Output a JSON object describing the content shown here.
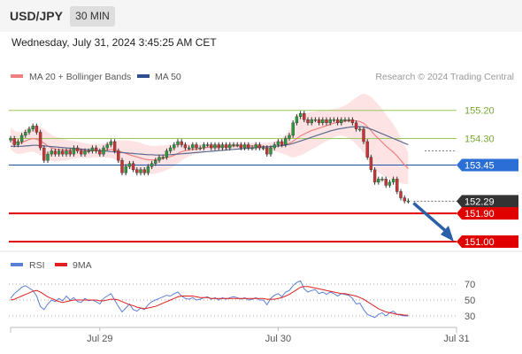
{
  "header": {
    "symbol": "USD/JPY",
    "timeframe": "30 MIN"
  },
  "datetime": "Wednesday, July 31, 2024 3:45:25 AM CET",
  "legend": {
    "items": [
      {
        "label": "MA 20 + Bollinger Bands",
        "color": "#f08080"
      },
      {
        "label": "MA 50",
        "color": "#2f4f8f"
      }
    ],
    "research": "Research © 2024 Trading Central"
  },
  "rsi_legend": {
    "items": [
      {
        "label": "RSI",
        "color": "#5b7fd6"
      },
      {
        "label": "9MA",
        "color": "#e02020"
      }
    ]
  },
  "chart_data": {
    "type": "candlestick",
    "instrument": "USD/JPY",
    "timeframe": "30 MIN",
    "ylim": [
      150.8,
      155.9
    ],
    "x_ticks": [
      {
        "label": "Jul 29",
        "index": 24
      },
      {
        "label": "Jul 30",
        "index": 72
      },
      {
        "label": "Jul 31",
        "index": 120
      }
    ],
    "levels": [
      {
        "label": "155.20",
        "value": 155.2,
        "kind": "resistance",
        "color": "#9ac85a"
      },
      {
        "label": "154.30",
        "value": 154.3,
        "kind": "resistance",
        "color": "#9ac85a"
      },
      {
        "label": "153.45",
        "value": 153.45,
        "kind": "pivot",
        "color": "#1f4fa8",
        "badge": "#2b6fd6"
      },
      {
        "label": "152.29",
        "value": 152.29,
        "kind": "last_price",
        "color": "#555555",
        "badge": "#333333"
      },
      {
        "label": "151.90",
        "value": 151.9,
        "kind": "support",
        "color": "#e00000",
        "badge": "#e00000"
      },
      {
        "label": "151.00",
        "value": 151.0,
        "kind": "support",
        "color": "#e00000",
        "badge": "#e00000"
      }
    ],
    "closes": [
      154.3,
      154.1,
      154.2,
      154.4,
      154.5,
      154.6,
      154.7,
      154.5,
      154.0,
      153.6,
      153.8,
      153.9,
      153.8,
      153.9,
      153.8,
      153.9,
      153.8,
      154.0,
      153.9,
      153.8,
      153.9,
      153.9,
      154.0,
      153.9,
      153.8,
      154.0,
      154.1,
      154.2,
      153.9,
      153.6,
      153.2,
      153.4,
      153.5,
      153.3,
      153.2,
      153.3,
      153.2,
      153.4,
      153.5,
      153.6,
      153.7,
      153.7,
      153.9,
      154.0,
      154.1,
      154.2,
      154.1,
      154.0,
      154.0,
      154.1,
      154.0,
      154.0,
      154.1,
      154.1,
      154.0,
      154.1,
      154.0,
      154.1,
      154.0,
      154.1,
      154.1,
      154.1,
      154.0,
      154.1,
      154.0,
      154.0,
      154.1,
      154.0,
      154.0,
      153.8,
      154.0,
      154.1,
      154.2,
      154.1,
      154.3,
      154.4,
      154.8,
      155.0,
      155.1,
      154.9,
      154.8,
      154.9,
      154.9,
      154.8,
      154.9,
      154.8,
      154.9,
      154.9,
      154.8,
      154.9,
      154.9,
      154.9,
      154.8,
      154.6,
      154.6,
      154.2,
      153.7,
      153.3,
      152.9,
      153.0,
      153.0,
      152.8,
      152.9,
      153.0,
      152.6,
      152.4,
      152.3,
      152.3
    ],
    "ma20": [
      154.3,
      154.2,
      154.15,
      154.17,
      154.22,
      154.27,
      154.3,
      154.28,
      154.22,
      154.15,
      154.06,
      154.0,
      153.96,
      153.95,
      153.94,
      153.93,
      153.93,
      153.94,
      153.94,
      153.93,
      153.91,
      153.9,
      153.91,
      153.92,
      153.91,
      153.92,
      153.93,
      153.95,
      153.93,
      153.9,
      153.86,
      153.82,
      153.78,
      153.74,
      153.71,
      153.68,
      153.64,
      153.62,
      153.61,
      153.62,
      153.64,
      153.66,
      153.69,
      153.72,
      153.76,
      153.82,
      153.87,
      153.91,
      153.93,
      153.95,
      153.96,
      153.98,
      154.0,
      154.02,
      154.03,
      154.04,
      154.05,
      154.05,
      154.05,
      154.06,
      154.06,
      154.06,
      154.06,
      154.06,
      154.06,
      154.06,
      154.06,
      154.05,
      154.05,
      154.04,
      154.04,
      154.05,
      154.06,
      154.07,
      154.1,
      154.15,
      154.21,
      154.3,
      154.38,
      154.44,
      154.5,
      154.55,
      154.59,
      154.63,
      154.67,
      154.71,
      154.75,
      154.79,
      154.82,
      154.85,
      154.86,
      154.87,
      154.88,
      154.86,
      154.84,
      154.79,
      154.68,
      154.55,
      154.41,
      154.3,
      154.18,
      154.06,
      153.96,
      153.86,
      153.74,
      153.6,
      153.46,
      153.34
    ],
    "ma50": [
      154.05,
      154.05,
      154.05,
      154.05,
      154.06,
      154.07,
      154.08,
      154.08,
      154.07,
      154.06,
      154.05,
      154.04,
      154.03,
      154.02,
      154.01,
      154.0,
      153.99,
      153.98,
      153.97,
      153.96,
      153.95,
      153.94,
      153.93,
      153.92,
      153.91,
      153.9,
      153.89,
      153.88,
      153.87,
      153.86,
      153.85,
      153.84,
      153.83,
      153.82,
      153.81,
      153.8,
      153.79,
      153.78,
      153.78,
      153.77,
      153.77,
      153.77,
      153.78,
      153.78,
      153.79,
      153.8,
      153.81,
      153.82,
      153.83,
      153.84,
      153.85,
      153.86,
      153.87,
      153.88,
      153.89,
      153.9,
      153.91,
      153.92,
      153.93,
      153.94,
      153.95,
      153.96,
      153.97,
      153.98,
      153.99,
      154.0,
      154.01,
      154.02,
      154.03,
      154.03,
      154.04,
      154.05,
      154.06,
      154.07,
      154.09,
      154.11,
      154.14,
      154.18,
      154.22,
      154.26,
      154.3,
      154.34,
      154.38,
      154.42,
      154.46,
      154.5,
      154.54,
      154.57,
      154.6,
      154.62,
      154.64,
      154.66,
      154.67,
      154.68,
      154.68,
      154.67,
      154.64,
      154.6,
      154.55,
      154.5,
      154.45,
      154.4,
      154.35,
      154.3,
      154.25,
      154.2,
      154.15,
      154.1
    ],
    "bb_band": [
      0.35,
      0.35,
      0.35,
      0.36,
      0.38,
      0.4,
      0.42,
      0.44,
      0.45,
      0.45,
      0.44,
      0.42,
      0.4,
      0.38,
      0.35,
      0.33,
      0.3,
      0.28,
      0.26,
      0.25,
      0.24,
      0.23,
      0.22,
      0.22,
      0.22,
      0.22,
      0.24,
      0.27,
      0.3,
      0.34,
      0.38,
      0.42,
      0.45,
      0.47,
      0.48,
      0.48,
      0.47,
      0.46,
      0.45,
      0.44,
      0.43,
      0.42,
      0.4,
      0.38,
      0.35,
      0.32,
      0.28,
      0.24,
      0.2,
      0.17,
      0.15,
      0.13,
      0.12,
      0.11,
      0.1,
      0.1,
      0.1,
      0.1,
      0.1,
      0.1,
      0.1,
      0.1,
      0.1,
      0.1,
      0.1,
      0.1,
      0.1,
      0.1,
      0.11,
      0.12,
      0.14,
      0.16,
      0.2,
      0.25,
      0.32,
      0.42,
      0.52,
      0.58,
      0.62,
      0.63,
      0.62,
      0.6,
      0.58,
      0.55,
      0.52,
      0.5,
      0.48,
      0.45,
      0.45,
      0.46,
      0.5,
      0.56,
      0.65,
      0.75,
      0.85,
      0.95,
      1.02,
      1.08,
      1.1,
      1.08,
      1.05,
      1.0,
      0.95,
      0.9,
      0.82,
      0.72,
      0.62,
      0.5
    ],
    "rsi": {
      "levels": [
        70,
        50,
        30
      ],
      "ylim": [
        20,
        80
      ],
      "rsi": [
        52,
        58,
        62,
        66,
        68,
        65,
        62,
        55,
        42,
        38,
        45,
        50,
        48,
        52,
        49,
        55,
        50,
        53,
        48,
        47,
        52,
        49,
        50,
        48,
        45,
        52,
        55,
        58,
        50,
        42,
        35,
        40,
        45,
        38,
        36,
        40,
        38,
        44,
        48,
        50,
        52,
        54,
        56,
        55,
        58,
        60,
        55,
        52,
        51,
        53,
        50,
        51,
        53,
        54,
        51,
        53,
        50,
        53,
        51,
        53,
        54,
        53,
        51,
        53,
        50,
        51,
        53,
        50,
        50,
        44,
        52,
        56,
        58,
        54,
        60,
        62,
        68,
        72,
        74,
        64,
        60,
        62,
        63,
        58,
        60,
        57,
        60,
        58,
        55,
        58,
        57,
        56,
        52,
        45,
        46,
        38,
        32,
        30,
        28,
        32,
        34,
        30,
        34,
        36,
        32,
        31,
        30,
        30
      ],
      "ma9": [
        50,
        51,
        53,
        55,
        57,
        59,
        61,
        62,
        60,
        57,
        54,
        52,
        50,
        48,
        47,
        48,
        49,
        50,
        50,
        50,
        50,
        50,
        50,
        50,
        49,
        49,
        50,
        51,
        51,
        50,
        48,
        46,
        44,
        43,
        41,
        40,
        39,
        40,
        41,
        42,
        44,
        46,
        48,
        50,
        52,
        54,
        55,
        55,
        55,
        55,
        54,
        53,
        53,
        53,
        52,
        52,
        52,
        52,
        52,
        52,
        52,
        52,
        52,
        52,
        52,
        52,
        52,
        52,
        52,
        51,
        51,
        51,
        52,
        53,
        55,
        57,
        60,
        63,
        66,
        67,
        67,
        66,
        65,
        64,
        63,
        62,
        61,
        60,
        59,
        58,
        58,
        57,
        56,
        55,
        53,
        51,
        48,
        45,
        42,
        39,
        37,
        35,
        34,
        33,
        32,
        32,
        31,
        31
      ]
    }
  }
}
